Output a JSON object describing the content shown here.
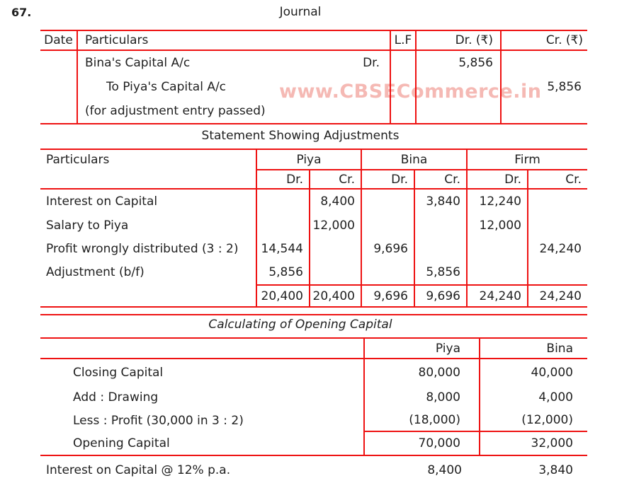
{
  "page": {
    "question_number": "67.",
    "watermark": "www.CBSECommerce.in"
  },
  "colors": {
    "line_red": "#ee1212",
    "text": "#1f1f1f",
    "watermark_pink": "#f5b9b4"
  },
  "journal": {
    "title": "Journal",
    "headers": {
      "date": "Date",
      "particulars": "Particulars",
      "lf": "L.F",
      "dr": "Dr. (₹)",
      "cr": "Cr. (₹)"
    },
    "rows": [
      {
        "particulars": "Bina's Capital A/c",
        "suffix": "Dr.",
        "dr": "5,856",
        "cr": ""
      },
      {
        "particulars": "To Piya's Capital A/c",
        "suffix": "",
        "dr": "",
        "cr": "5,856"
      },
      {
        "particulars": "(for adjustment entry passed)",
        "suffix": "",
        "dr": "",
        "cr": ""
      }
    ]
  },
  "statement": {
    "title": "Statement Showing Adjustments",
    "headers": {
      "particulars": "Particulars",
      "groups": [
        "Piya",
        "Bina",
        "Firm"
      ],
      "dr": "Dr.",
      "cr": "Cr."
    },
    "rows": [
      {
        "label": "Interest on Capital",
        "piya_dr": "",
        "piya_cr": "8,400",
        "bina_dr": "",
        "bina_cr": "3,840",
        "firm_dr": "12,240",
        "firm_cr": ""
      },
      {
        "label": "Salary to Piya",
        "piya_dr": "",
        "piya_cr": "12,000",
        "bina_dr": "",
        "bina_cr": "",
        "firm_dr": "12,000",
        "firm_cr": ""
      },
      {
        "label": "Profit wrongly distributed (3 : 2)",
        "piya_dr": "14,544",
        "piya_cr": "",
        "bina_dr": "9,696",
        "bina_cr": "",
        "firm_dr": "",
        "firm_cr": "24,240"
      },
      {
        "label": "Adjustment (b/f)",
        "piya_dr": "5,856",
        "piya_cr": "",
        "bina_dr": "",
        "bina_cr": "5,856",
        "firm_dr": "",
        "firm_cr": ""
      }
    ],
    "totals": {
      "piya_dr": "20,400",
      "piya_cr": "20,400",
      "bina_dr": "9,696",
      "bina_cr": "9,696",
      "firm_dr": "24,240",
      "firm_cr": "24,240"
    }
  },
  "opening": {
    "title": "Calculating of Opening Capital",
    "headers": {
      "piya": "Piya",
      "bina": "Bina"
    },
    "rows": [
      {
        "label": "Closing Capital",
        "piya": "80,000",
        "bina": "40,000"
      },
      {
        "label": "Add : Drawing",
        "piya": "8,000",
        "bina": "4,000"
      },
      {
        "label": "Less : Profit (30,000 in 3 : 2)",
        "piya": "(18,000)",
        "bina": "(12,000)"
      },
      {
        "label": "Opening Capital",
        "piya": "70,000",
        "bina": "32,000"
      }
    ],
    "footer": {
      "label": "Interest on Capital @ 12% p.a.",
      "piya": "8,400",
      "bina": "3,840"
    }
  }
}
